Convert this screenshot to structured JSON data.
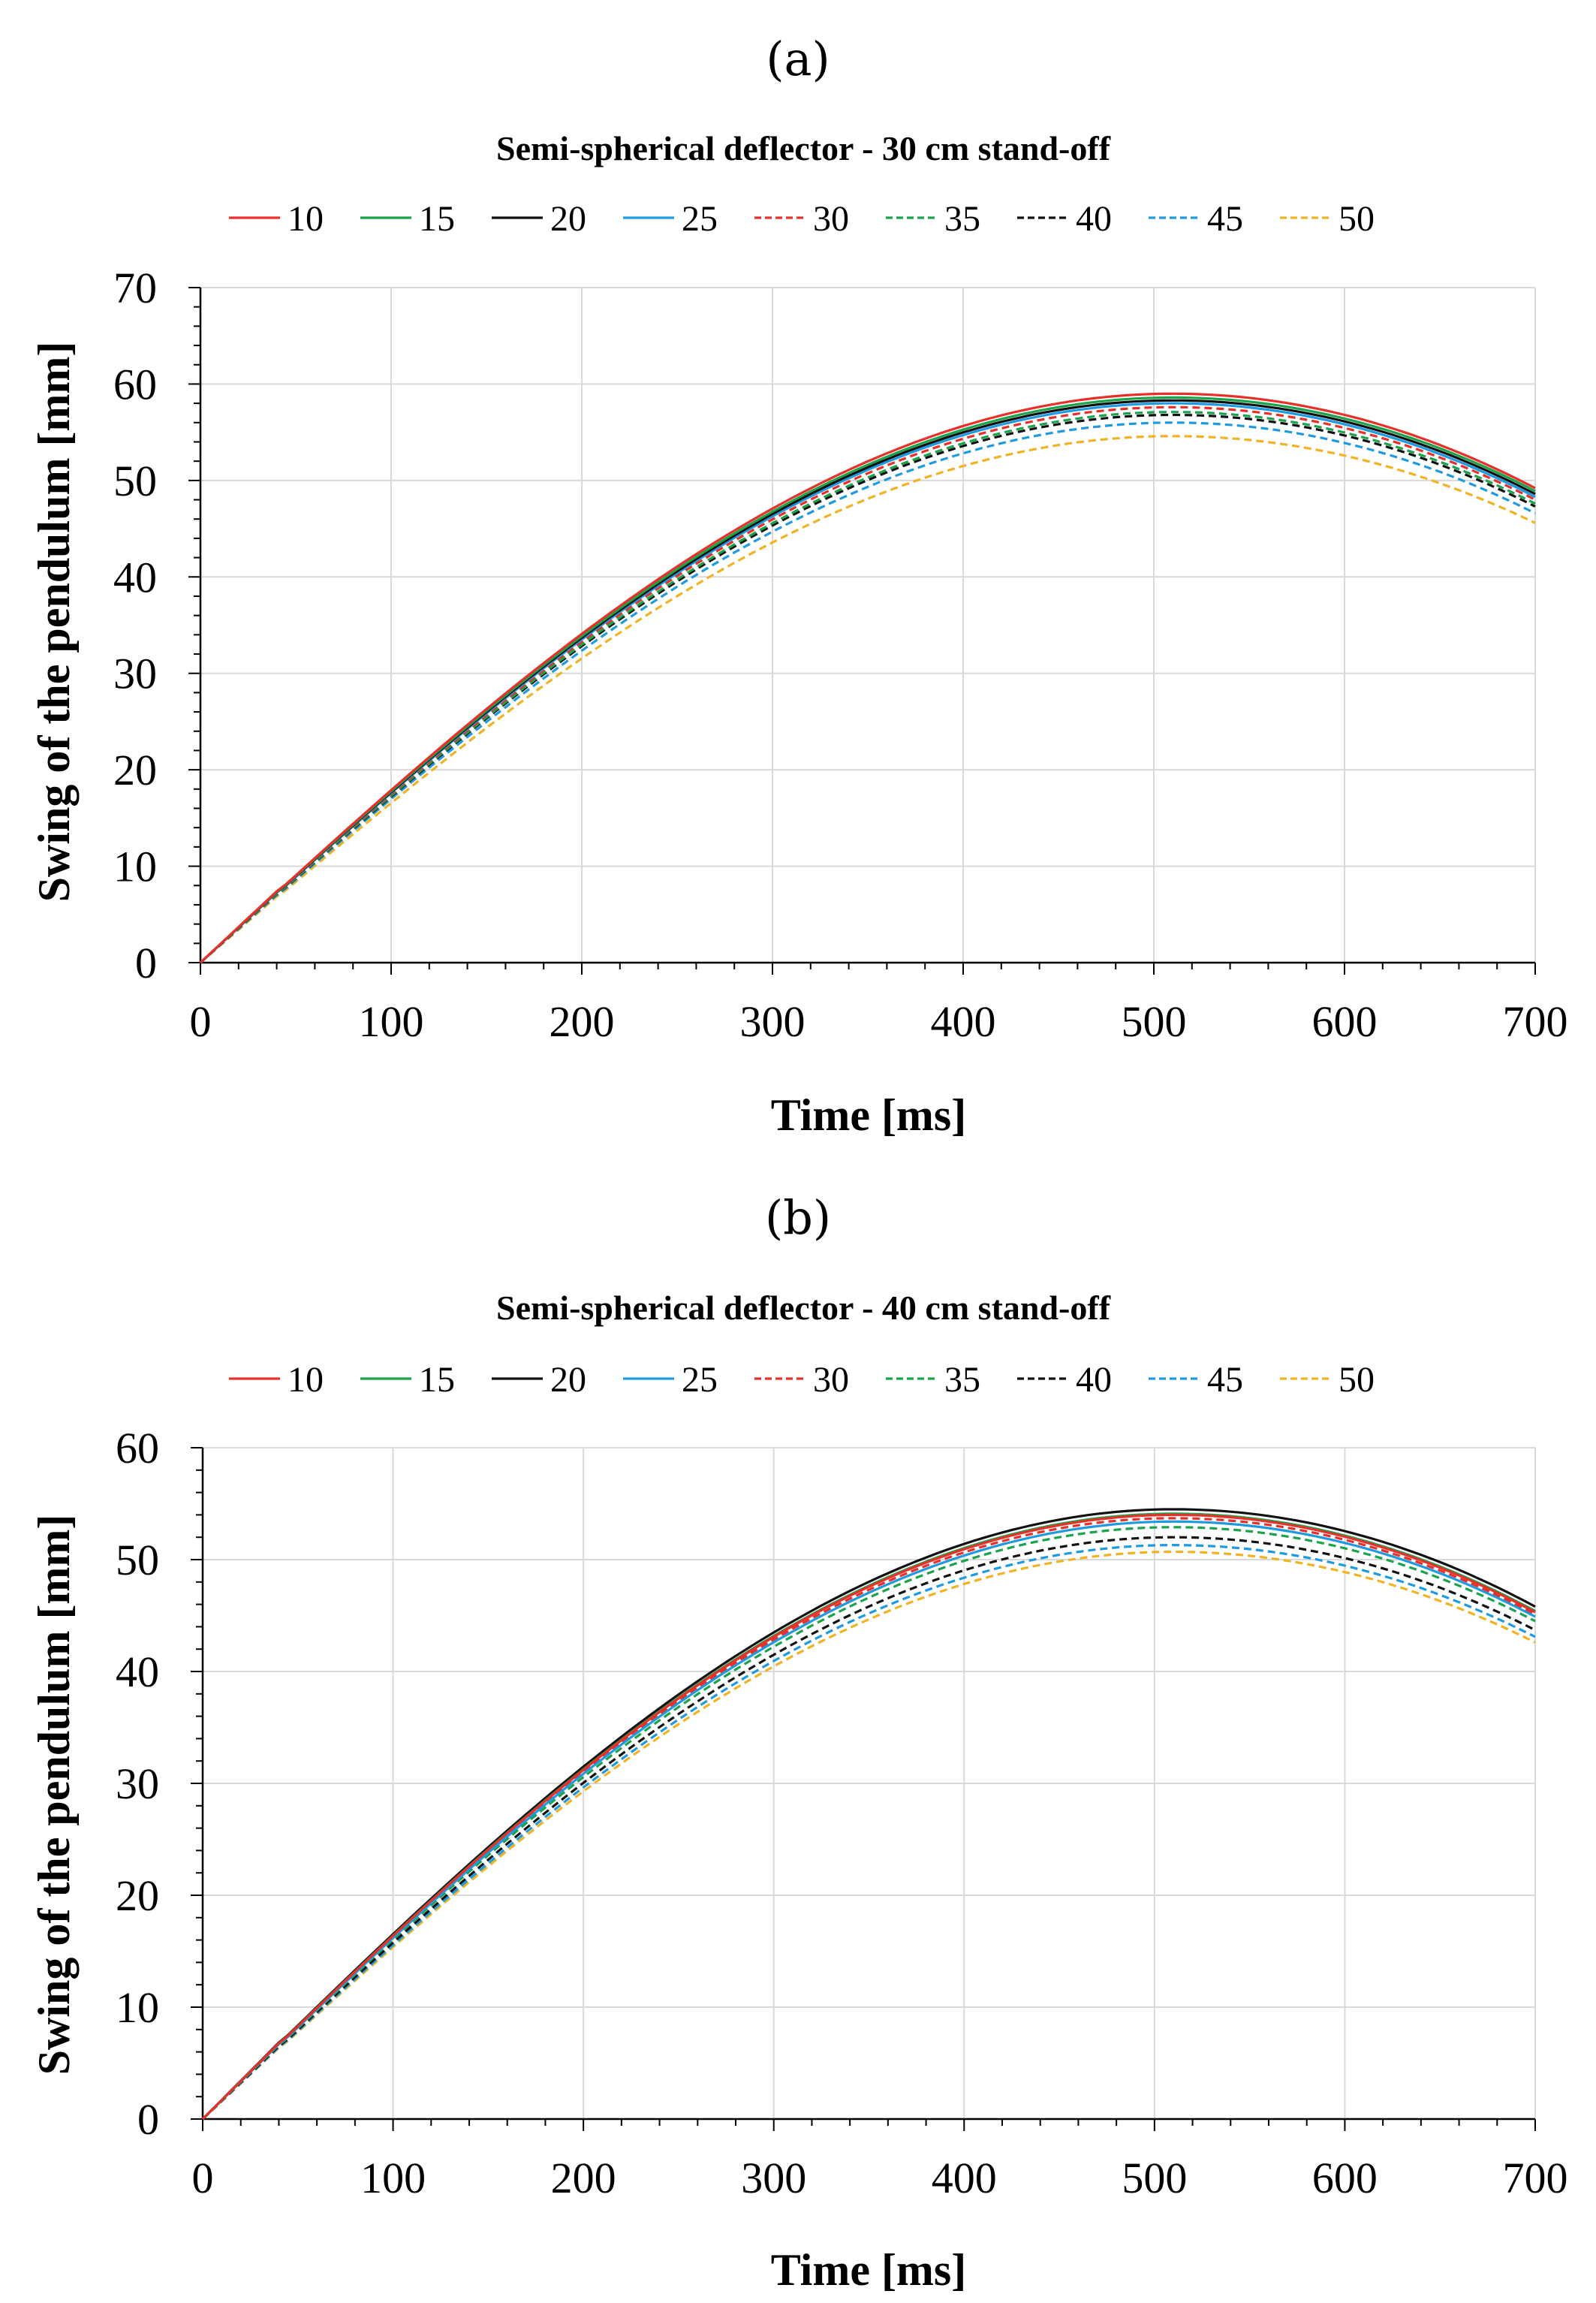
{
  "chart_data": [
    {
      "type": "line",
      "panel_label": "(a)",
      "title": "Semi-spherical deflector - 30 cm stand-off",
      "xlabel": "Time [ms]",
      "ylabel": "Swing of the pendulum [mm]",
      "xlim": [
        0,
        700
      ],
      "ylim": [
        0,
        70
      ],
      "xticks": [
        0,
        100,
        200,
        300,
        400,
        500,
        600,
        700
      ],
      "yticks": [
        0,
        10,
        20,
        30,
        40,
        50,
        60,
        70
      ],
      "xtick_labels": [
        "0",
        "100",
        "200",
        "300",
        "400",
        "500",
        "600",
        "700"
      ],
      "ytick_labels": [
        "0",
        "10",
        "20",
        "30",
        "40",
        "50",
        "60",
        "70"
      ],
      "grid": true,
      "legend_position": "top",
      "series": [
        {
          "name": "10",
          "color": "#e8302a",
          "style": "solid",
          "peak": 59.0,
          "end": 49.2
        },
        {
          "name": "15",
          "color": "#1aa34a",
          "style": "solid",
          "peak": 58.6,
          "end": 48.9
        },
        {
          "name": "20",
          "color": "#111111",
          "style": "solid",
          "peak": 58.3,
          "end": 48.6
        },
        {
          "name": "25",
          "color": "#1e9be0",
          "style": "solid",
          "peak": 58.0,
          "end": 48.3
        },
        {
          "name": "30",
          "color": "#e8302a",
          "style": "dashed",
          "peak": 57.6,
          "end": 48.0
        },
        {
          "name": "35",
          "color": "#1aa34a",
          "style": "dashed",
          "peak": 57.1,
          "end": 47.6
        },
        {
          "name": "40",
          "color": "#111111",
          "style": "dashed",
          "peak": 56.8,
          "end": 47.3
        },
        {
          "name": "45",
          "color": "#1e9be0",
          "style": "dashed",
          "peak": 56.0,
          "end": 46.6
        },
        {
          "name": "50",
          "color": "#f0b323",
          "style": "dashed",
          "peak": 54.6,
          "end": 45.6
        }
      ]
    },
    {
      "type": "line",
      "panel_label": "(b)",
      "title": "Semi-spherical deflector - 40 cm stand-off",
      "xlabel": "Time [ms]",
      "ylabel": "Swing of the pendulum [mm]",
      "xlim": [
        0,
        700
      ],
      "ylim": [
        0,
        60
      ],
      "xticks": [
        0,
        100,
        200,
        300,
        400,
        500,
        600,
        700
      ],
      "yticks": [
        0,
        10,
        20,
        30,
        40,
        50,
        60
      ],
      "xtick_labels": [
        "0",
        "100",
        "200",
        "300",
        "400",
        "500",
        "600",
        "700"
      ],
      "ytick_labels": [
        "0",
        "10",
        "20",
        "30",
        "40",
        "50",
        "60"
      ],
      "grid": true,
      "legend_position": "top",
      "series": [
        {
          "name": "10",
          "color": "#e8302a",
          "style": "solid",
          "peak": 54.0,
          "end": 45.3
        },
        {
          "name": "15",
          "color": "#1aa34a",
          "style": "solid",
          "peak": 54.1,
          "end": 45.4
        },
        {
          "name": "20",
          "color": "#111111",
          "style": "solid",
          "peak": 54.5,
          "end": 45.8
        },
        {
          "name": "25",
          "color": "#1e9be0",
          "style": "solid",
          "peak": 53.4,
          "end": 44.9
        },
        {
          "name": "30",
          "color": "#e8302a",
          "style": "dashed",
          "peak": 53.7,
          "end": 45.1
        },
        {
          "name": "35",
          "color": "#1aa34a",
          "style": "dashed",
          "peak": 52.9,
          "end": 44.5
        },
        {
          "name": "40",
          "color": "#111111",
          "style": "dashed",
          "peak": 52.0,
          "end": 43.7
        },
        {
          "name": "45",
          "color": "#1e9be0",
          "style": "dashed",
          "peak": 51.3,
          "end": 43.1
        },
        {
          "name": "50",
          "color": "#f0b323",
          "style": "dashed",
          "peak": 50.7,
          "end": 42.6
        }
      ]
    }
  ]
}
